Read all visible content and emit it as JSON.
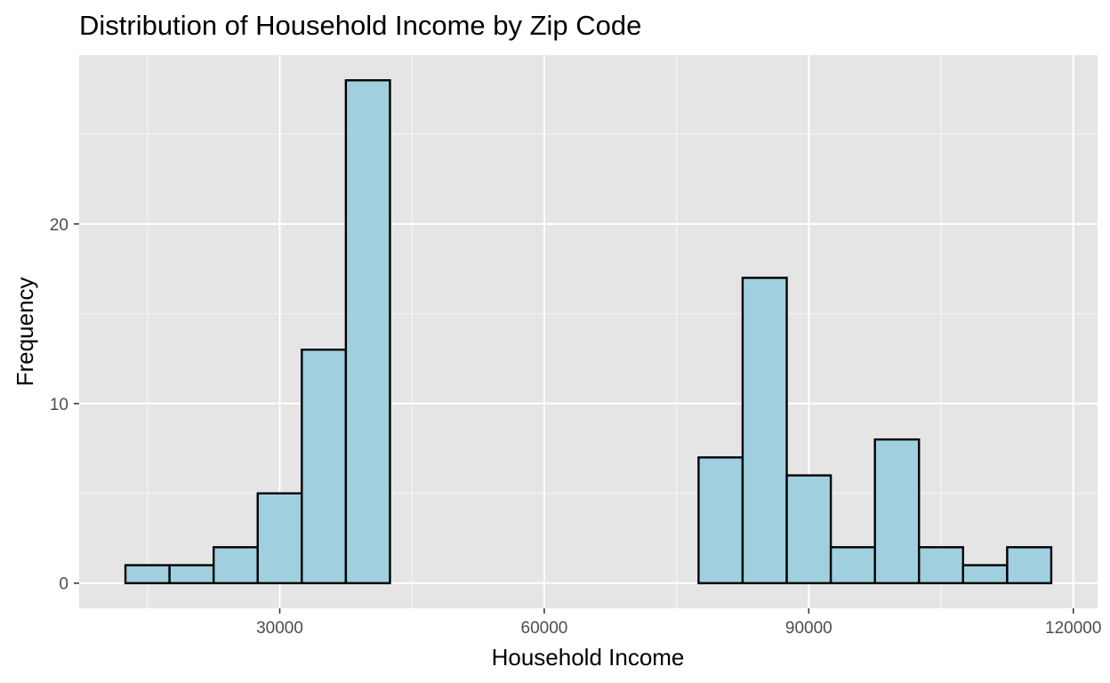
{
  "chart_data": {
    "type": "bar",
    "title": "Distribution of Household Income by Zip Code",
    "xlabel": "Household Income",
    "ylabel": "Frequency",
    "bin_width": 5000,
    "bins": [
      {
        "x0": 12500,
        "x1": 17500,
        "count": 1
      },
      {
        "x0": 17500,
        "x1": 22500,
        "count": 1
      },
      {
        "x0": 22500,
        "x1": 27500,
        "count": 2
      },
      {
        "x0": 27500,
        "x1": 32500,
        "count": 5
      },
      {
        "x0": 32500,
        "x1": 37500,
        "count": 13
      },
      {
        "x0": 37500,
        "x1": 42500,
        "count": 28
      },
      {
        "x0": 42500,
        "x1": 47500,
        "count": 0
      },
      {
        "x0": 47500,
        "x1": 52500,
        "count": 0
      },
      {
        "x0": 52500,
        "x1": 57500,
        "count": 0
      },
      {
        "x0": 57500,
        "x1": 62500,
        "count": 0
      },
      {
        "x0": 62500,
        "x1": 67500,
        "count": 0
      },
      {
        "x0": 67500,
        "x1": 72500,
        "count": 0
      },
      {
        "x0": 72500,
        "x1": 77500,
        "count": 0
      },
      {
        "x0": 77500,
        "x1": 82500,
        "count": 7
      },
      {
        "x0": 82500,
        "x1": 87500,
        "count": 17
      },
      {
        "x0": 87500,
        "x1": 92500,
        "count": 6
      },
      {
        "x0": 92500,
        "x1": 97500,
        "count": 2
      },
      {
        "x0": 97500,
        "x1": 102500,
        "count": 8
      },
      {
        "x0": 102500,
        "x1": 107500,
        "count": 2
      },
      {
        "x0": 107500,
        "x1": 112500,
        "count": 1
      },
      {
        "x0": 112500,
        "x1": 117500,
        "count": 2
      }
    ],
    "xlim": [
      7250,
      122750
    ],
    "ylim": [
      -1.4,
      29.4
    ],
    "x_ticks": [
      {
        "value": 30000,
        "label": "30000"
      },
      {
        "value": 60000,
        "label": "60000"
      },
      {
        "value": 90000,
        "label": "90000"
      },
      {
        "value": 120000,
        "label": "120000"
      }
    ],
    "x_minor_ticks": [
      15000,
      45000,
      75000,
      105000
    ],
    "y_ticks": [
      {
        "value": 0,
        "label": "0"
      },
      {
        "value": 10,
        "label": "10"
      },
      {
        "value": 20,
        "label": "20"
      }
    ],
    "y_minor_ticks": [
      5,
      15,
      25
    ],
    "grid": true,
    "legend": "none",
    "colors": {
      "bar_fill": "#a0d0e0",
      "bar_stroke": "#000000",
      "panel_background": "#e5e5e5",
      "grid": "#ffffff"
    }
  }
}
